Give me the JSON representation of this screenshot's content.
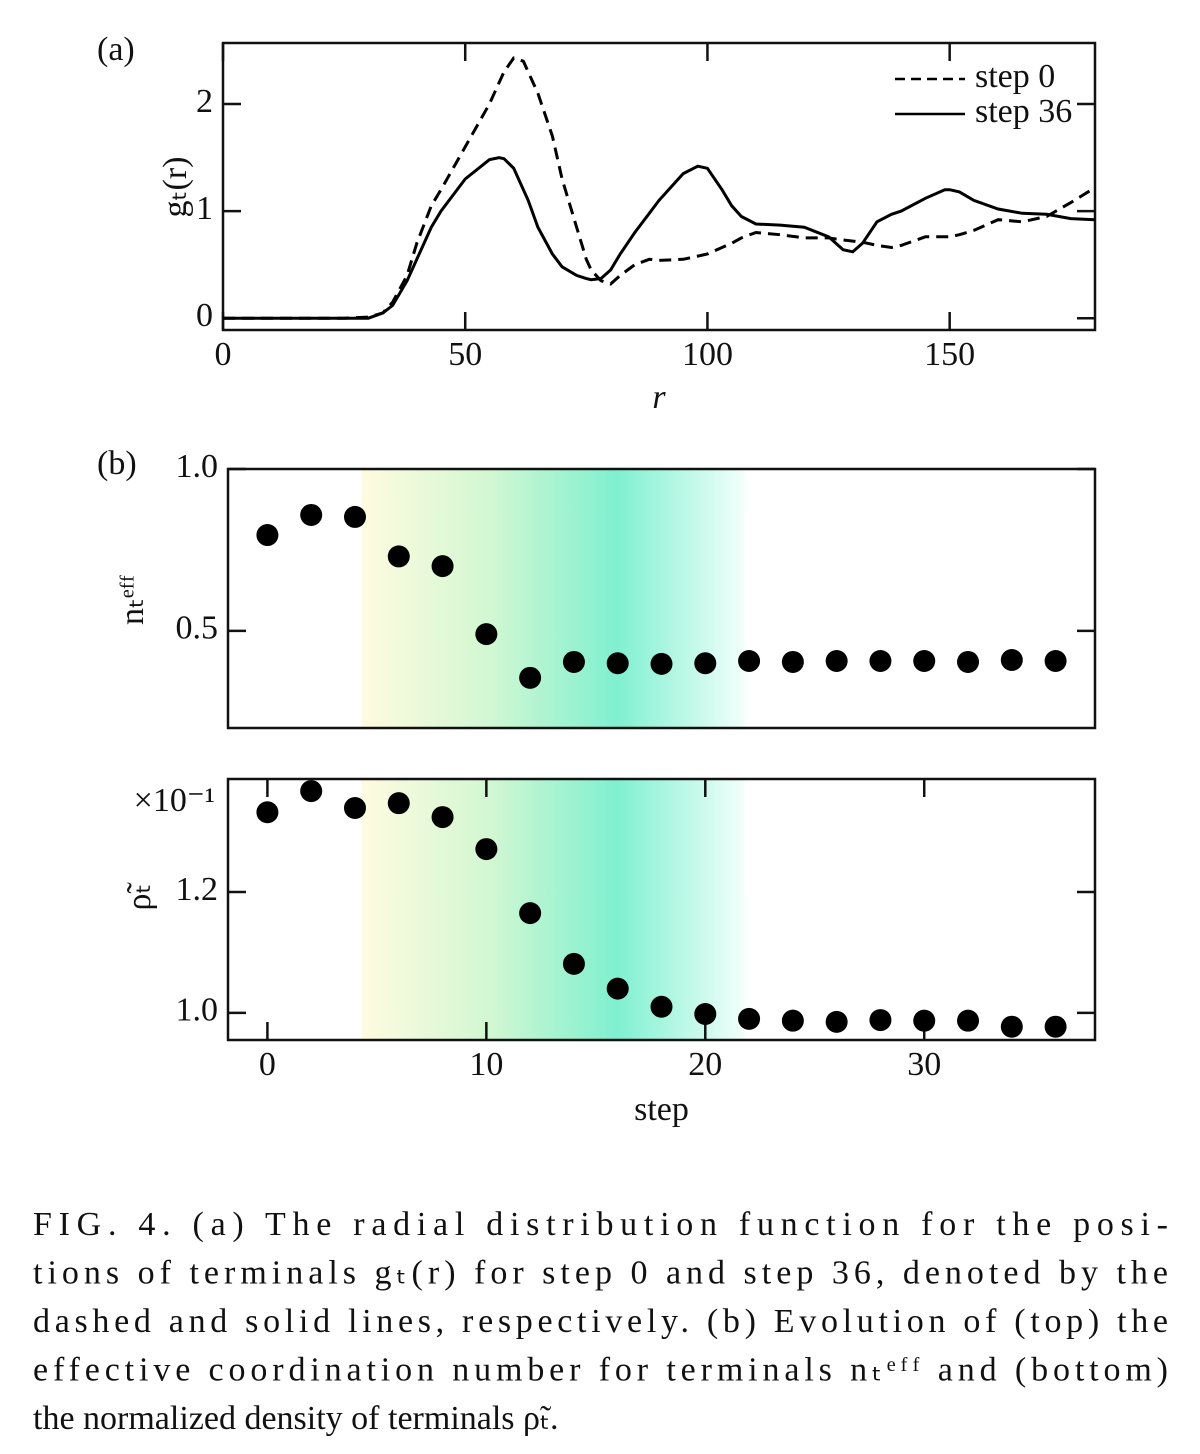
{
  "chart_data": [
    {
      "type": "line",
      "panel": "(a)",
      "xlabel": "r",
      "ylabel": "gₜ(r)",
      "xlim": [
        0,
        180
      ],
      "ylim": [
        -0.11,
        2.57
      ],
      "xticks": [
        0,
        50,
        100,
        150
      ],
      "yticks": [
        0,
        1,
        2
      ],
      "legend": "upper right",
      "x": [
        0,
        5,
        10,
        15,
        20,
        25,
        30,
        33,
        35,
        38,
        40,
        43,
        45,
        50,
        55,
        57,
        58,
        60,
        62,
        63,
        65,
        68,
        70,
        73,
        75,
        76,
        78,
        80,
        82,
        85,
        88,
        90,
        95,
        98,
        100,
        103,
        105,
        107,
        110,
        115,
        120,
        125,
        128,
        130,
        132,
        135,
        138,
        140,
        145,
        149,
        150,
        152,
        155,
        160,
        165,
        170,
        175,
        180
      ],
      "series": [
        {
          "name": "step 0",
          "color": "#000000",
          "linestyle": "dashed",
          "values": [
            0,
            0,
            0,
            0,
            0,
            0,
            0.01,
            0.05,
            0.15,
            0.4,
            0.7,
            1.05,
            1.2,
            1.6,
            2.0,
            2.2,
            2.3,
            2.43,
            2.4,
            2.3,
            2.1,
            1.7,
            1.3,
            0.85,
            0.55,
            0.45,
            0.35,
            0.32,
            0.4,
            0.5,
            0.55,
            0.54,
            0.55,
            0.58,
            0.6,
            0.66,
            0.7,
            0.75,
            0.8,
            0.78,
            0.75,
            0.75,
            0.73,
            0.72,
            0.71,
            0.68,
            0.66,
            0.68,
            0.76,
            0.76,
            0.76,
            0.78,
            0.82,
            0.92,
            0.9,
            0.95,
            1.08,
            1.22
          ]
        },
        {
          "name": "step 36",
          "color": "#000000",
          "linestyle": "solid",
          "values": [
            0,
            0,
            0,
            0,
            0,
            0,
            0,
            0.05,
            0.12,
            0.35,
            0.55,
            0.85,
            1.0,
            1.3,
            1.48,
            1.5,
            1.49,
            1.4,
            1.2,
            1.1,
            0.85,
            0.6,
            0.48,
            0.4,
            0.37,
            0.36,
            0.37,
            0.45,
            0.6,
            0.8,
            0.98,
            1.1,
            1.35,
            1.42,
            1.4,
            1.2,
            1.05,
            0.95,
            0.88,
            0.87,
            0.85,
            0.76,
            0.64,
            0.62,
            0.7,
            0.9,
            0.97,
            1.0,
            1.12,
            1.2,
            1.2,
            1.18,
            1.1,
            1.02,
            0.98,
            0.97,
            0.93,
            0.92
          ]
        }
      ]
    },
    {
      "type": "scatter",
      "panel": "(b)",
      "ylabel": "nₜᵉᶠᶠ",
      "xlim": [
        -1.8,
        37.8
      ],
      "ylim": [
        0.2,
        1.0
      ],
      "yticks": [
        0.5,
        {
          "value": 1,
          "label": "1.0"
        }
      ],
      "shade": [
        4.3,
        21.8
      ],
      "shade_colors": [
        "#fffbe0",
        "#d2f7d2",
        "#7ff0d0",
        "#f2fffb"
      ],
      "color": "#000000",
      "x": [
        0,
        2,
        4,
        6,
        8,
        10,
        12,
        14,
        16,
        18,
        20,
        22,
        24,
        26,
        28,
        30,
        32,
        34,
        36
      ],
      "values": [
        0.796,
        0.858,
        0.852,
        0.73,
        0.7,
        0.49,
        0.355,
        0.404,
        0.4,
        0.398,
        0.4,
        0.407,
        0.404,
        0.407,
        0.407,
        0.407,
        0.404,
        0.41,
        0.407
      ]
    },
    {
      "type": "scatter",
      "xlabel": "step",
      "ylabel": "ρ̃ₜ",
      "y_offset_label": "×10⁻¹",
      "xlim": [
        -1.8,
        37.8
      ],
      "ylim": [
        0.955,
        1.387
      ],
      "xticks": [
        0,
        10,
        20,
        30
      ],
      "yticks": [
        {
          "value": 1,
          "label": "1.0"
        },
        1.2
      ],
      "shade": [
        4.3,
        21.8
      ],
      "shade_colors": [
        "#fffbe0",
        "#d2f7d2",
        "#7ff0d0",
        "#f2fffb"
      ],
      "color": "#000000",
      "x": [
        0,
        2,
        4,
        6,
        8,
        10,
        12,
        14,
        16,
        18,
        20,
        22,
        24,
        26,
        28,
        30,
        32,
        34,
        36
      ],
      "values": [
        1.332,
        1.367,
        1.339,
        1.347,
        1.324,
        1.271,
        1.165,
        1.081,
        1.04,
        1.01,
        0.998,
        0.99,
        0.987,
        0.985,
        0.988,
        0.987,
        0.987,
        0.977,
        0.977
      ]
    }
  ],
  "caption": {
    "lines": [
      "FIG. 4.    (a) The radial distribution function for the posi-",
      "tions of terminals gₜ(r) for step 0 and step 36, denoted by the",
      "dashed and solid lines, respectively. (b) Evolution of (top) the",
      "effective coordination number for terminals nₜᵉᶠᶠ and (bottom)",
      "the normalized density of terminals ρ̃ₜ."
    ]
  }
}
